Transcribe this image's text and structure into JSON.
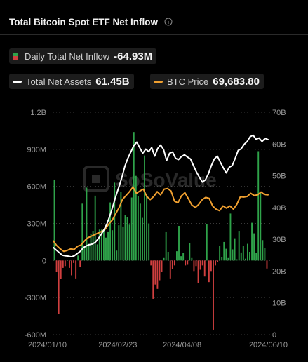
{
  "header": {
    "title": "Total Bitcoin Spot ETF Net Inflow",
    "info_icon": "info-circle-icon"
  },
  "legend": {
    "inflow": {
      "label": "Daily Total Net Inflow",
      "value": "-64.93M",
      "color_pos": "#2fa34a",
      "color_neg": "#d03f3f"
    },
    "assets": {
      "label": "Total Net Assets",
      "value": "61.45B",
      "color": "#ffffff"
    },
    "btc": {
      "label": "BTC Price",
      "value": "69,683.80",
      "color": "#f0a030"
    }
  },
  "watermark": "SoSoValue",
  "chart_data": {
    "type": "bar",
    "x_tick_labels": [
      "2024/01/10",
      "2024/02/23",
      "2024/04/08",
      "2024/06/10"
    ],
    "y_left": {
      "ticks": [
        "-600M",
        "-300M",
        "0",
        "300M",
        "600M",
        "900M",
        "1.2B"
      ],
      "range": [
        -600,
        1200
      ],
      "unit": "M USD"
    },
    "y_right": {
      "ticks": [
        "0",
        "10B",
        "20B",
        "30B",
        "40B",
        "50B",
        "60B",
        "70B"
      ],
      "range": [
        0,
        70
      ],
      "unit": "B USD"
    },
    "grid": "horizontal",
    "series": [
      {
        "name": "Daily Total Net Inflow",
        "type": "bar",
        "values": [
          655,
          -90,
          -430,
          -150,
          -60,
          -45,
          5,
          -60,
          -120,
          -20,
          -145,
          40,
          -55,
          460,
          120,
          590,
          135,
          215,
          240,
          525,
          130,
          250,
          250,
          255,
          185,
          235,
          470,
          245,
          630,
          80,
          285,
          555,
          275,
          365,
          350,
          290,
          510,
          1040,
          685,
          520,
          460,
          345,
          850,
          530,
          300,
          -40,
          -310,
          -195,
          -230,
          -160,
          -90,
          20,
          235,
          70,
          -145,
          -70,
          -40,
          75,
          280,
          35,
          60,
          -40,
          -35,
          140,
          20,
          -85,
          -45,
          -185,
          -75,
          -40,
          -130,
          295,
          -175,
          -85,
          -560,
          -40,
          -10,
          120,
          30,
          150,
          95,
          20,
          380,
          90,
          180,
          10,
          240,
          65,
          120,
          15,
          135,
          70,
          305,
          220,
          60,
          885,
          555,
          165,
          100,
          -65
        ]
      },
      {
        "name": "Total Net Assets",
        "type": "line",
        "axis": "right",
        "values": [
          27.4,
          26.6,
          25.8,
          25.0,
          24.8,
          24.7,
          24.5,
          24.8,
          25.5,
          26.2,
          27.3,
          27.9,
          28.3,
          28.5,
          29.0,
          30.1,
          31.5,
          33.0,
          34.9,
          37.5,
          40.5,
          43.7,
          46.5,
          49.5,
          53.0,
          55.5,
          57.5,
          59.5,
          60.6,
          58.8,
          57.1,
          58.4,
          57.6,
          58.9,
          56.2,
          58.6,
          59.7,
          58.2,
          54.8,
          57.1,
          57.5,
          55.5,
          55.1,
          56.1,
          56.6,
          55.9,
          55.3,
          53.2,
          51.2,
          49.5,
          48.0,
          48.7,
          50.6,
          53.2,
          55.3,
          56.2,
          54.3,
          52.5,
          50.9,
          52.7,
          53.2,
          55.5,
          58.0,
          58.5,
          59.9,
          60.8,
          62.3,
          62.8,
          61.5,
          61.9,
          60.8,
          61.8,
          61.4
        ]
      },
      {
        "name": "BTC Price",
        "type": "line",
        "axis": "right",
        "values": [
          29.5,
          28.0,
          27.0,
          26.2,
          26.5,
          27.0,
          26.8,
          27.8,
          28.2,
          29.5,
          30.5,
          31.0,
          31.5,
          32.0,
          32.5,
          33.2,
          34.8,
          36.0,
          38.0,
          40.0,
          42.6,
          43.8,
          45.0,
          46.5,
          44.5,
          45.2,
          45.8,
          43.5,
          42.5,
          43.5,
          45.0,
          44.0,
          45.8,
          46.0,
          45.2,
          42.0,
          41.5,
          43.7,
          44.7,
          42.8,
          40.8,
          40.0,
          41.0,
          42.5,
          43.2,
          42.9,
          40.5,
          39.5,
          39.0,
          40.5,
          39.8,
          40.5,
          39.5,
          41.0,
          43.4,
          43.3,
          43.5,
          44.5,
          43.8,
          44.0,
          44.9,
          44.1,
          44.0
        ]
      }
    ]
  }
}
